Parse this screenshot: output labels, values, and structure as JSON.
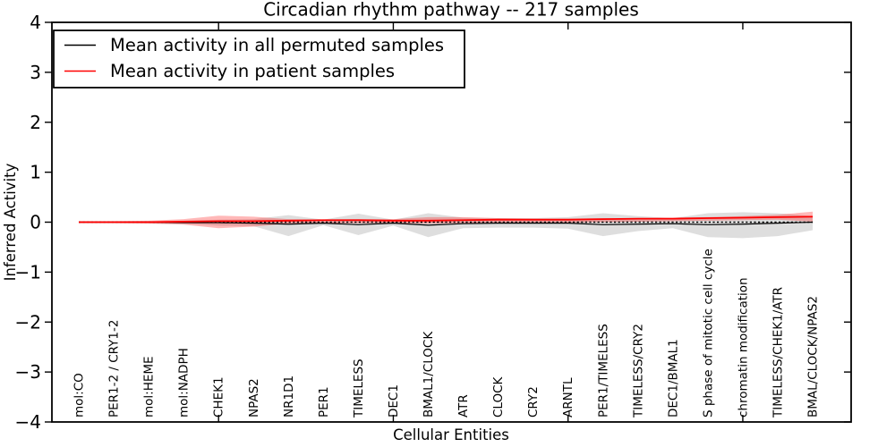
{
  "chart_data": {
    "type": "line",
    "title": "Circadian rhythm pathway -- 217 samples",
    "xlabel": "Cellular Entities",
    "ylabel": "Inferred Activity",
    "ylim": [
      -4,
      4
    ],
    "grid": false,
    "legend_position": "upper-left",
    "yticks": {
      "values": [
        4,
        3,
        2,
        1,
        0,
        -1,
        -2,
        -3,
        -4
      ],
      "labels": [
        "4",
        "3",
        "2",
        "1",
        "0",
        "−1",
        "−2",
        "−3",
        "−4"
      ]
    },
    "xtick_indices": [
      4,
      9,
      14,
      19
    ],
    "categories": [
      "mol:CO",
      "PER1-2 / CRY1-2",
      "mol:HEME",
      "mol:NADPH",
      "CHEK1",
      "NPAS2",
      "NR1D1",
      "PER1",
      "TIMELESS",
      "DEC1",
      "BMAL1/CLOCK",
      "ATR",
      "CLOCK",
      "CRY2",
      "ARNTL",
      "PER1/TIMELESS",
      "TIMELESS/CRY2",
      "DEC1/BMAL1",
      "S phase of mitotic cell cycle",
      "chromatin modification",
      "TIMELESS/CHEK1/ATR",
      "BMAL/CLOCK/NPAS2"
    ],
    "legend": [
      {
        "label": "Mean activity in all permuted samples",
        "color": "#000000"
      },
      {
        "label": "Mean activity in patient samples",
        "color": "#ff0000"
      }
    ],
    "series": [
      {
        "name": "zero-reference-line",
        "color": "#000000",
        "style": "dotted",
        "width": 1.4,
        "values": [
          0,
          0,
          0,
          0,
          0,
          0,
          0,
          0,
          0,
          0,
          0,
          0,
          0,
          0,
          0,
          0,
          0,
          0,
          0,
          0,
          0,
          0
        ]
      },
      {
        "name": "permuted-mean-line",
        "color": "#000000",
        "style": "solid",
        "width": 1.2,
        "values": [
          0,
          0,
          0,
          -0.01,
          -0.01,
          -0.02,
          -0.04,
          -0.02,
          -0.05,
          -0.02,
          -0.06,
          -0.03,
          -0.02,
          -0.02,
          -0.02,
          -0.05,
          -0.04,
          -0.03,
          -0.05,
          -0.04,
          -0.02,
          0
        ]
      },
      {
        "name": "patient-mean-line",
        "color": "#ff0000",
        "style": "solid",
        "width": 1.8,
        "values": [
          0,
          0,
          0,
          0.01,
          0.02,
          0.02,
          0.03,
          0.04,
          0.04,
          0.03,
          0.03,
          0.04,
          0.05,
          0.05,
          0.05,
          0.06,
          0.07,
          0.07,
          0.08,
          0.09,
          0.1,
          0.11
        ]
      }
    ],
    "bands": [
      {
        "name": "permuted-variance",
        "color": "rgba(0,0,0,0.13)",
        "upper": [
          0.01,
          0.01,
          0.02,
          0.03,
          0.05,
          0.06,
          0.14,
          0.05,
          0.17,
          0.05,
          0.18,
          0.09,
          0.08,
          0.08,
          0.1,
          0.18,
          0.12,
          0.08,
          0.18,
          0.2,
          0.18,
          0.12
        ],
        "lower": [
          -0.01,
          -0.01,
          -0.02,
          -0.03,
          -0.07,
          -0.08,
          -0.28,
          -0.06,
          -0.26,
          -0.07,
          -0.3,
          -0.12,
          -0.11,
          -0.11,
          -0.13,
          -0.28,
          -0.18,
          -0.12,
          -0.3,
          -0.32,
          -0.28,
          -0.16
        ]
      },
      {
        "name": "patient-variance",
        "color": "rgba(255,0,0,0.28)",
        "upper": [
          0.02,
          0.02,
          0.03,
          0.06,
          0.13,
          0.11,
          0.06,
          0.05,
          0.06,
          0.06,
          0.1,
          0.1,
          0.08,
          0.07,
          0.07,
          0.08,
          0.08,
          0.09,
          0.1,
          0.12,
          0.15,
          0.21
        ],
        "lower": [
          -0.02,
          -0.02,
          -0.03,
          -0.05,
          -0.12,
          -0.09,
          -0.03,
          -0.02,
          -0.02,
          -0.02,
          -0.03,
          -0.02,
          -0.01,
          -0.01,
          -0.01,
          0.0,
          0.01,
          0.02,
          0.03,
          0.04,
          0.05,
          0.01
        ]
      }
    ]
  }
}
